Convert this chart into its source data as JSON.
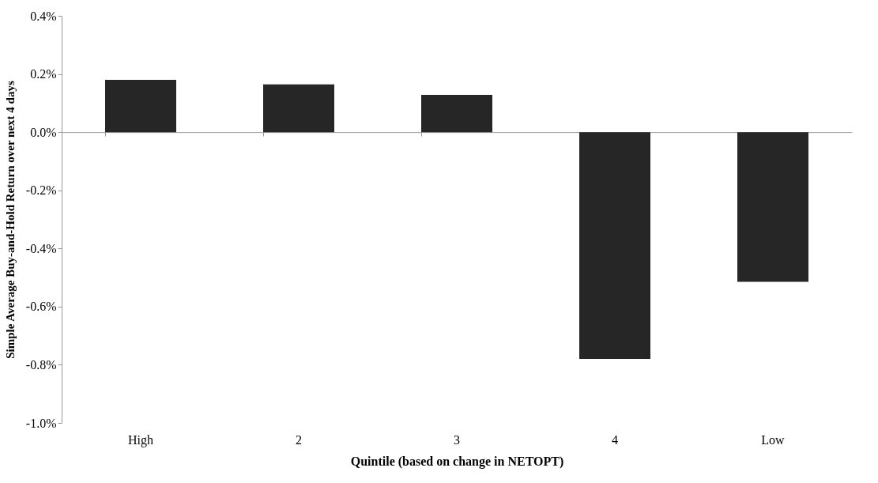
{
  "chart_data": {
    "type": "bar",
    "xlabel": "Quintile (based on change in NETOPT)",
    "ylabel": "Simple Average Buy-and-Hold  Return over next 4 days",
    "categories": [
      "High",
      "2",
      "3",
      "4",
      "Low"
    ],
    "values": [
      0.18,
      0.164,
      0.128,
      -0.78,
      -0.515
    ],
    "color": "#262626",
    "ylim": [
      -1.0,
      0.4
    ],
    "yticks": [
      {
        "value": -1.0,
        "label": "-1.0%"
      },
      {
        "value": -0.8,
        "label": "-0.8%"
      },
      {
        "value": -0.6,
        "label": "-0.6%"
      },
      {
        "value": -0.4,
        "label": "-0.4%"
      },
      {
        "value": -0.2,
        "label": "-0.2%"
      },
      {
        "value": 0.0,
        "label": "0.0%"
      },
      {
        "value": 0.2,
        "label": "0.2%"
      },
      {
        "value": 0.4,
        "label": "0.4%"
      }
    ]
  }
}
